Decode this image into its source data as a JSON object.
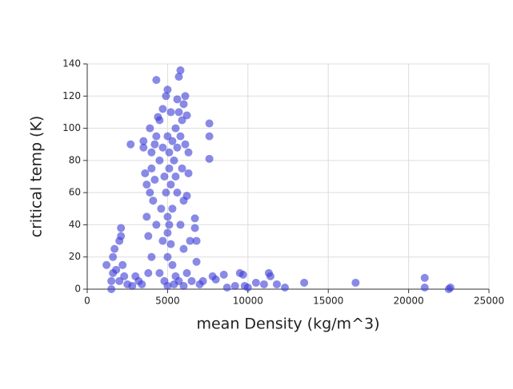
{
  "chart_data": {
    "type": "scatter",
    "xlabel": "mean Density (kg/m^3)",
    "ylabel": "critical temp (K)",
    "x": [
      1200,
      1500,
      1500,
      1600,
      1600,
      1700,
      1800,
      2000,
      2100,
      2100,
      2000,
      2200,
      2300,
      2500,
      2700,
      2800,
      3000,
      3200,
      3400,
      3500,
      3500,
      3600,
      3700,
      3700,
      3800,
      3800,
      3900,
      3900,
      4000,
      4000,
      4000,
      4100,
      4200,
      4200,
      4300,
      4300,
      4300,
      4400,
      4500,
      4500,
      4500,
      4600,
      4700,
      4700,
      4700,
      4800,
      4800,
      4900,
      4900,
      5000,
      5000,
      5000,
      5000,
      5000,
      5000,
      5100,
      5100,
      5100,
      5200,
      5200,
      5200,
      5300,
      5300,
      5300,
      5400,
      5400,
      5500,
      5500,
      5500,
      5600,
      5600,
      5600,
      5700,
      5700,
      5700,
      5800,
      5800,
      5800,
      5900,
      5900,
      6000,
      6000,
      6000,
      6000,
      6100,
      6100,
      6200,
      6200,
      6200,
      6300,
      6300,
      6400,
      6500,
      6700,
      6700,
      6800,
      6800,
      7000,
      7200,
      7600,
      7600,
      7600,
      7800,
      8000,
      8500,
      8700,
      9200,
      9500,
      9700,
      9800,
      10000,
      10500,
      11000,
      11300,
      11400,
      11800,
      12300,
      13500,
      16700,
      21000,
      21000,
      22500,
      22600
    ],
    "values": [
      15,
      0,
      5,
      10,
      20,
      25,
      12,
      30,
      38,
      33,
      5,
      15,
      8,
      3,
      90,
      2,
      8,
      5,
      3,
      92,
      88,
      72,
      65,
      45,
      10,
      33,
      100,
      60,
      85,
      75,
      20,
      55,
      90,
      68,
      130,
      95,
      40,
      107,
      105,
      80,
      10,
      50,
      112,
      88,
      30,
      70,
      5,
      60,
      120,
      124,
      95,
      45,
      35,
      20,
      2,
      85,
      40,
      75,
      110,
      65,
      28,
      92,
      50,
      15,
      80,
      3,
      100,
      70,
      8,
      118,
      88,
      60,
      132,
      110,
      5,
      136,
      95,
      40,
      105,
      75,
      115,
      55,
      25,
      2,
      120,
      90,
      108,
      58,
      10,
      85,
      72,
      30,
      5,
      44,
      38,
      30,
      17,
      3,
      5,
      103,
      95,
      81,
      8,
      6,
      9,
      1,
      2,
      10,
      9,
      2,
      1,
      4,
      3,
      10,
      8,
      3,
      1,
      4,
      4,
      7,
      1,
      0,
      1
    ],
    "color": "#3a3ad6",
    "xlim": [
      0,
      25000
    ],
    "ylim": [
      0,
      140
    ],
    "xticks": [
      0,
      5000,
      10000,
      15000,
      20000,
      25000
    ],
    "yticks": [
      0,
      20,
      40,
      60,
      80,
      100,
      120,
      140
    ],
    "grid": true
  }
}
